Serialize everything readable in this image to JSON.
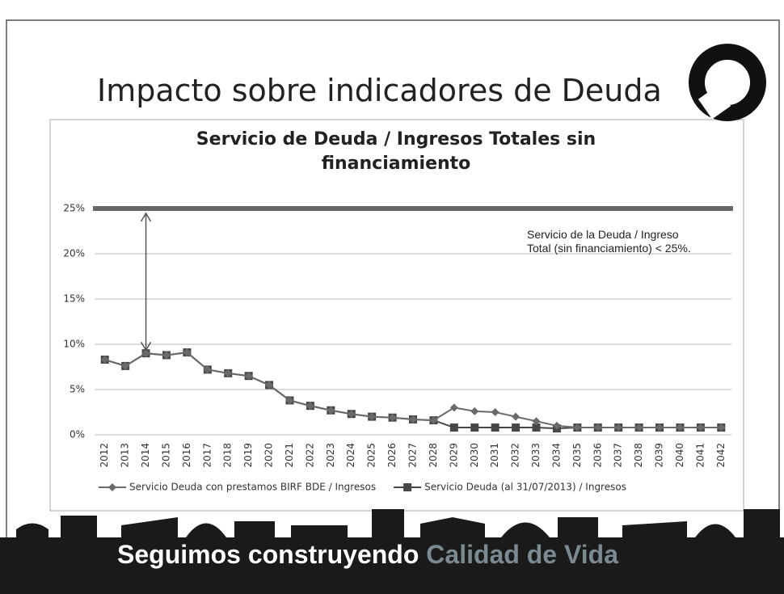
{
  "slide_title": "Impacto sobre indicadores de Deuda",
  "footer": {
    "text": "Seguimos construyendo",
    "highlight": "Calidad de Vida"
  },
  "chart_data": {
    "type": "line",
    "title": "Servicio de Deuda / Ingresos Totales sin financiamiento",
    "categories": [
      "2012",
      "2013",
      "2014",
      "2015",
      "2016",
      "2017",
      "2018",
      "2019",
      "2020",
      "2021",
      "2022",
      "2023",
      "2024",
      "2025",
      "2026",
      "2027",
      "2028",
      "2029",
      "2030",
      "2031",
      "2032",
      "2033",
      "2034",
      "2035",
      "2036",
      "2037",
      "2038",
      "2039",
      "2040",
      "2041",
      "2042"
    ],
    "series": [
      {
        "name": "Servicio Deuda con prestamos BIRF BDE / Ingresos",
        "color": "#6a6a6a",
        "marker": "diamond",
        "values": [
          8.3,
          7.6,
          9.0,
          8.8,
          9.1,
          7.2,
          6.8,
          6.5,
          5.5,
          3.8,
          3.2,
          2.7,
          2.3,
          2.0,
          1.9,
          1.7,
          1.6,
          3.0,
          2.6,
          2.5,
          2.0,
          1.5,
          1.0,
          0.8,
          0.8,
          0.8,
          0.8,
          0.8,
          0.8,
          0.8,
          0.8
        ]
      },
      {
        "name": "Servicio Deuda (al 31/07/2013) / Ingresos",
        "color": "#474747",
        "marker": "square",
        "values": [
          8.3,
          7.6,
          9.0,
          8.8,
          9.1,
          7.2,
          6.8,
          6.5,
          5.5,
          3.8,
          3.2,
          2.7,
          2.3,
          2.0,
          1.9,
          1.7,
          1.6,
          0.8,
          0.8,
          0.8,
          0.8,
          0.8,
          0.7,
          0.8,
          0.8,
          0.8,
          0.8,
          0.8,
          0.8,
          0.8,
          0.8
        ]
      }
    ],
    "ylim": [
      0,
      25
    ],
    "yticks": [
      {
        "value": 0,
        "label": "0%"
      },
      {
        "value": 5,
        "label": "5%"
      },
      {
        "value": 10,
        "label": "10%"
      },
      {
        "value": 15,
        "label": "15%"
      },
      {
        "value": 20,
        "label": "20%"
      },
      {
        "value": 25,
        "label": "25%"
      }
    ],
    "grid": true,
    "threshold": 25,
    "annotation": "Servicio de la Deuda / Ingreso Total (sin financiamiento) < 25%."
  }
}
